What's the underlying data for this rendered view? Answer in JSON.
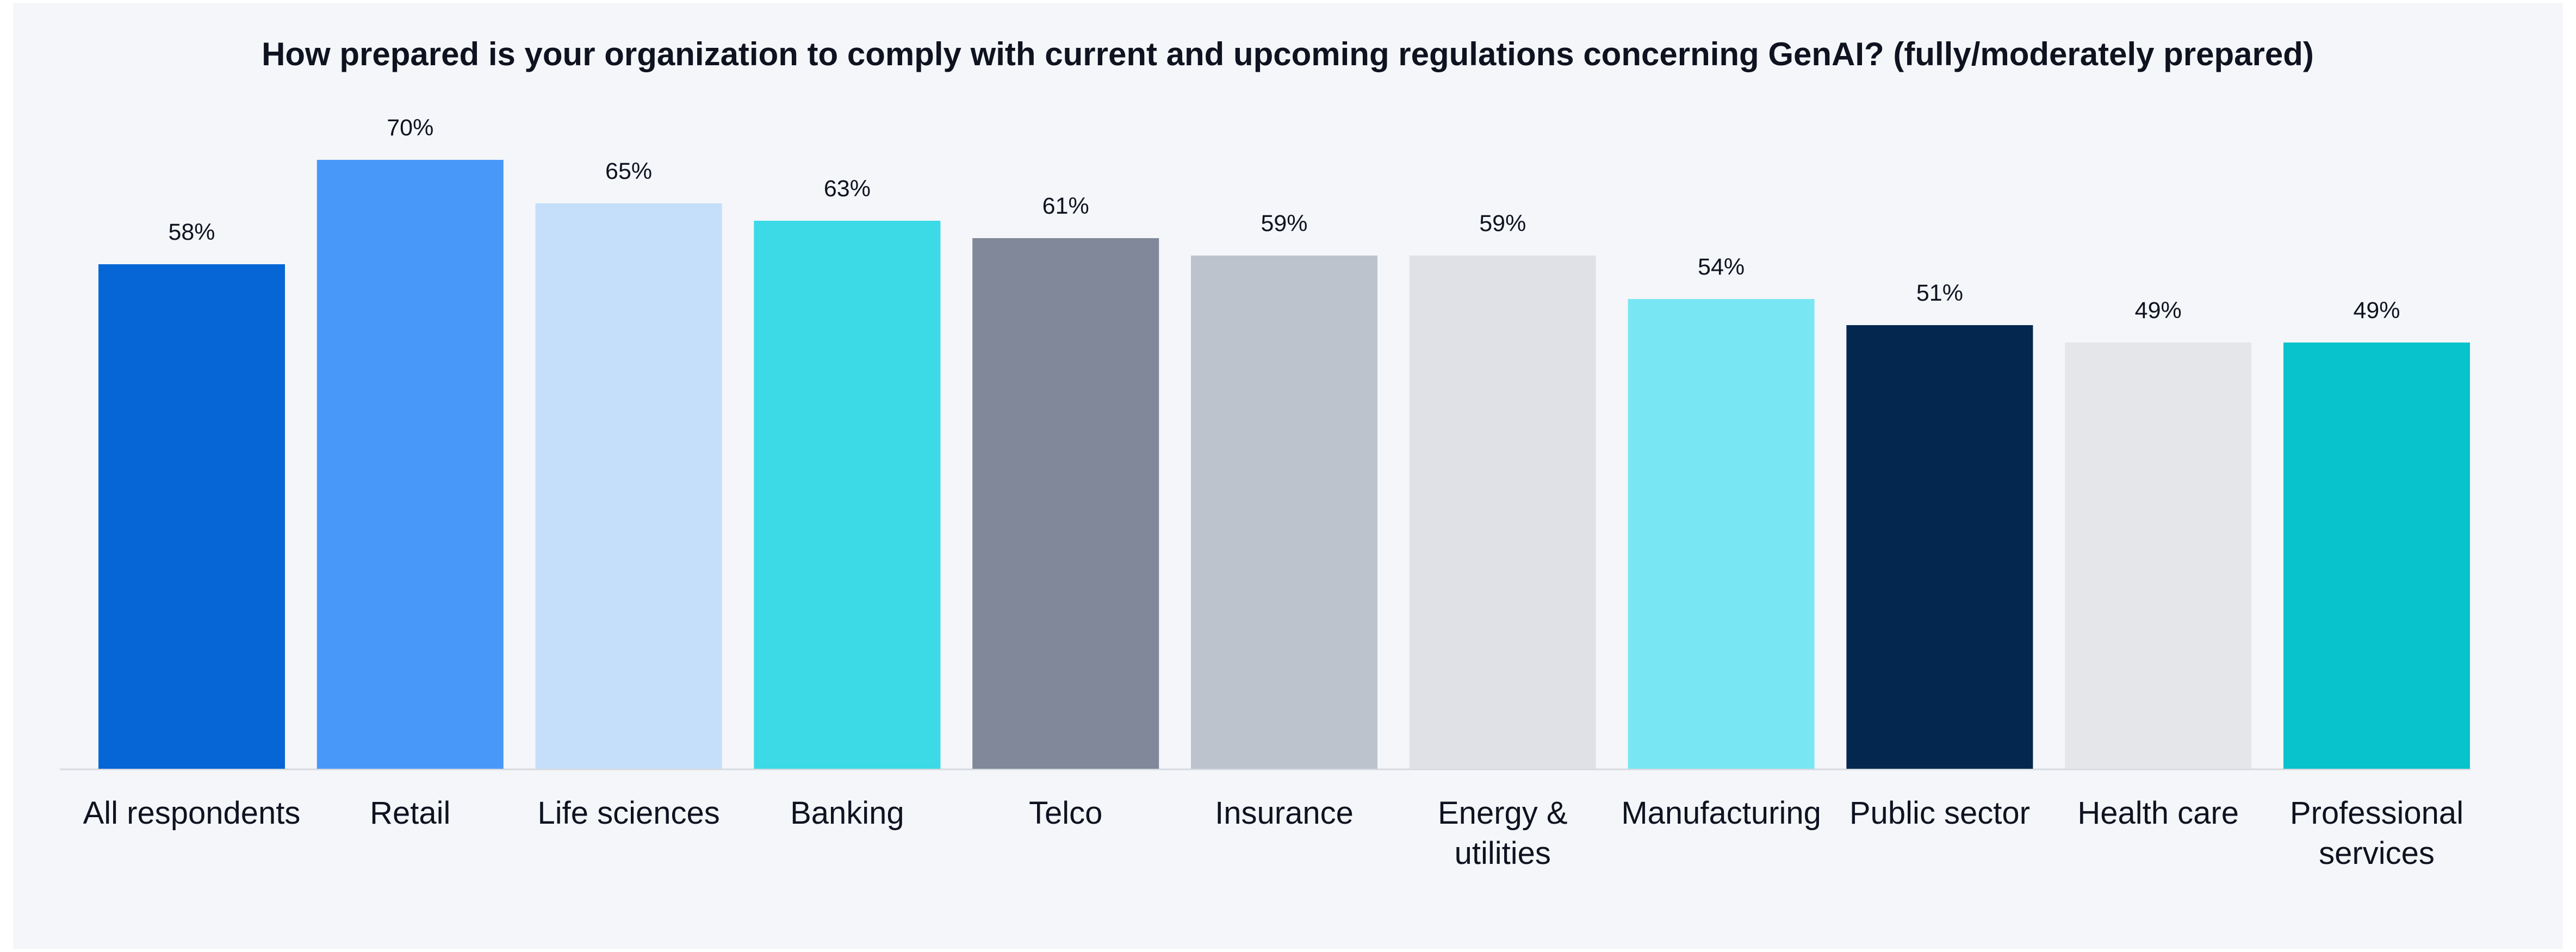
{
  "chart_data": {
    "type": "bar",
    "title": "How prepared is your organization to comply with current and upcoming regulations concerning GenAI? (fully/moderately prepared)",
    "xlabel": "",
    "ylabel": "",
    "ylim": [
      0,
      70
    ],
    "grid": false,
    "legend": "none",
    "categories": [
      [
        "All respondents"
      ],
      [
        "Retail"
      ],
      [
        "Life sciences"
      ],
      [
        "Banking"
      ],
      [
        "Telco"
      ],
      [
        "Insurance"
      ],
      [
        "Energy &",
        "utilities"
      ],
      [
        "Manufacturing"
      ],
      [
        "Public sector"
      ],
      [
        "Health care"
      ],
      [
        "Professional",
        "services"
      ]
    ],
    "values": [
      58,
      70,
      65,
      63,
      61,
      59,
      59,
      54,
      51,
      49,
      49
    ],
    "value_labels": [
      "58%",
      "70%",
      "65%",
      "63%",
      "61%",
      "59%",
      "59%",
      "54%",
      "51%",
      "49%",
      "49%"
    ],
    "colors": [
      "#0766d6",
      "#4898fa",
      "#c5dffb",
      "#3bdae6",
      "#808899",
      "#bcc3cd",
      "#dfe1e6",
      "#79e7f3",
      "#04274f",
      "#e5e6ea",
      "#08c2cc"
    ]
  }
}
